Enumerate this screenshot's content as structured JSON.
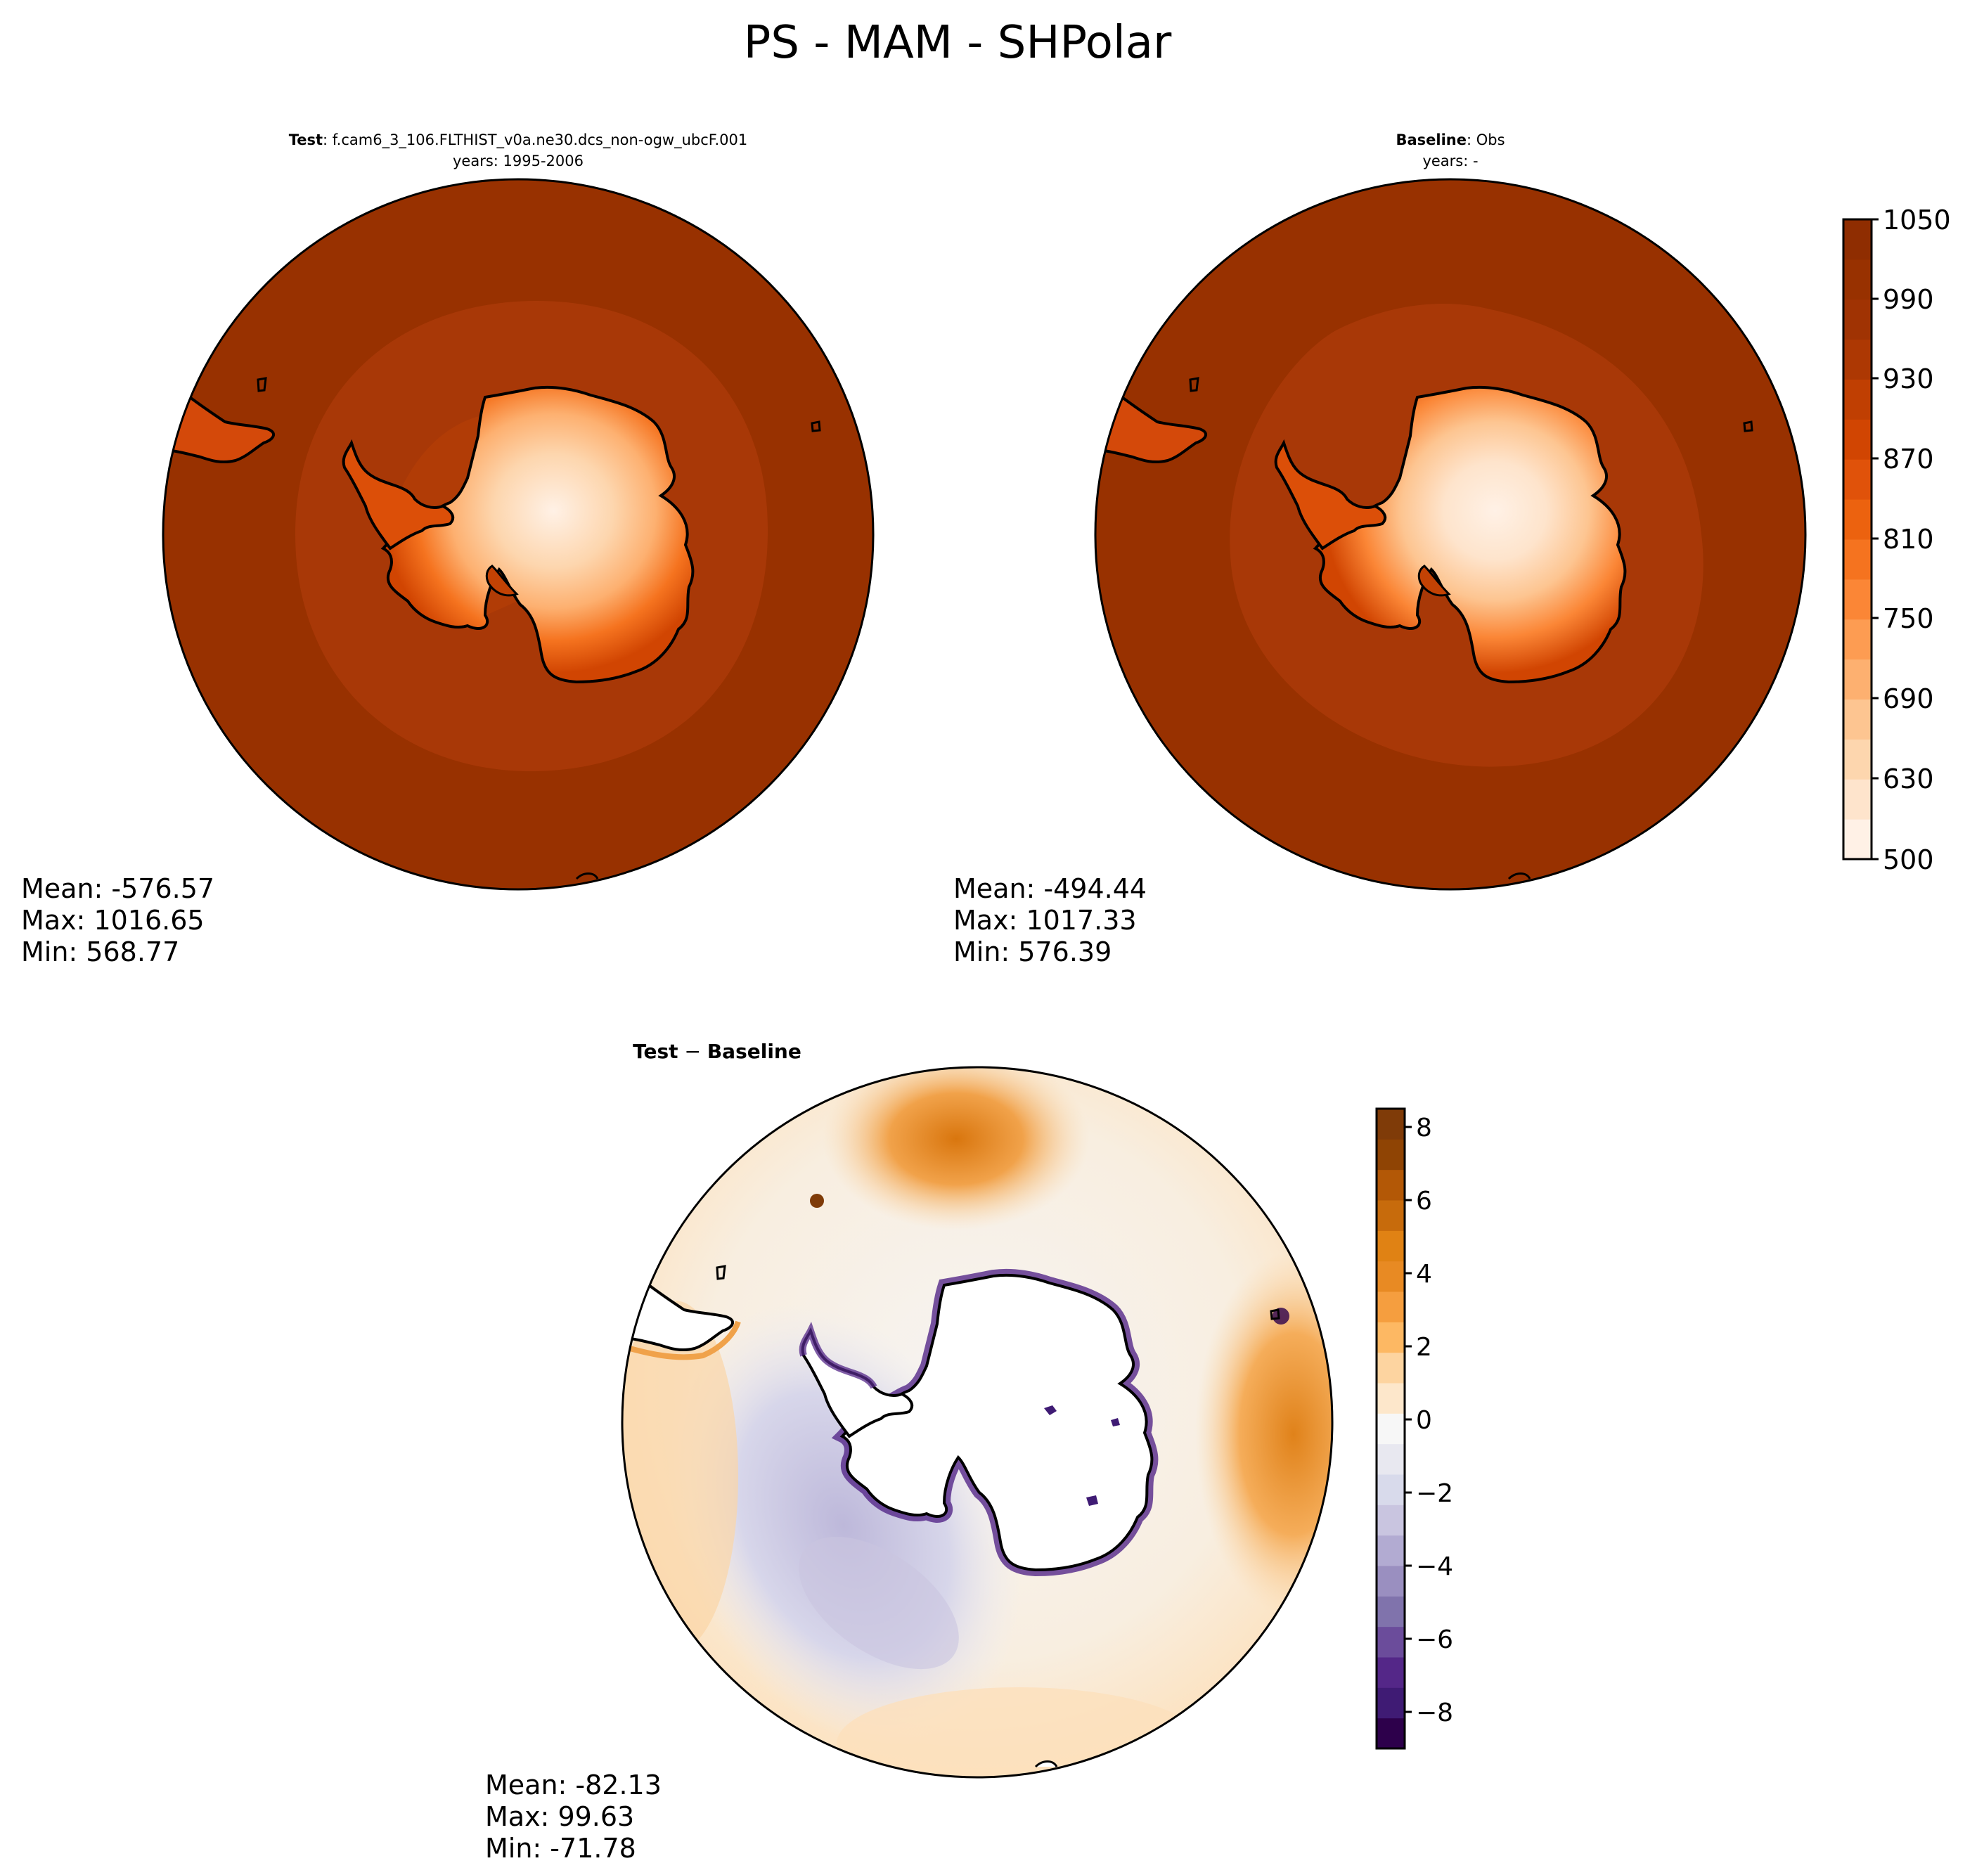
{
  "title": "PS - MAM - SHPolar",
  "colors": {
    "ocean_dark": "#983100",
    "ocean_mid": "#a83807",
    "coast_edge": "#e4570b",
    "interior_light": "#fdd0a4",
    "interior_center": "#fff1e6",
    "diff_pos": "#e57f1d",
    "diff_neg": "#b8b5d6",
    "diff_zero": "#f7f5f4"
  },
  "panels": {
    "test": {
      "label_bold": "Test",
      "label_rest": ": f.cam6_3_106.FLTHIST_v0a.ne30.dcs_non-ogw_ubcF.001",
      "years": "years: 1995-2006",
      "stats": [
        "Mean: -576.57",
        "Max: 1016.65",
        "Min: 568.77"
      ]
    },
    "baseline": {
      "label_bold": "Baseline",
      "label_rest": ": Obs",
      "years": "years: -",
      "stats": [
        "Mean: -494.44",
        "Max: 1017.33",
        "Min: 576.39"
      ]
    },
    "diff": {
      "label_bold": "Test",
      "label_op": " − ",
      "label_bold2": "Baseline",
      "stats": [
        "Mean: -82.13",
        "Max: 99.63",
        "Min: -71.78"
      ]
    }
  },
  "chart_data": [
    {
      "type": "heatmap",
      "title": "",
      "colorbar": {
        "min": 500,
        "max": 1050,
        "ticks": [
          "1050",
          "990",
          "930",
          "870",
          "810",
          "750",
          "690",
          "630",
          "500"
        ],
        "levels": [
          500,
          600,
          630,
          660,
          690,
          720,
          750,
          780,
          810,
          840,
          870,
          900,
          930,
          960,
          990,
          1020,
          1050
        ],
        "colors": [
          "#fff1e6",
          "#fee4cc",
          "#fdd6ae",
          "#fdc591",
          "#fdb070",
          "#fd9c52",
          "#fb8636",
          "#f5731f",
          "#ec620f",
          "#e0520a",
          "#d14502",
          "#c03f02",
          "#ad3803",
          "#a03303",
          "#983100",
          "#8f2d01"
        ]
      }
    },
    {
      "type": "heatmap",
      "title": "",
      "colorbar": {
        "min": -9,
        "max": 8.5,
        "ticks": [
          "8",
          "6",
          "4",
          "2",
          "0",
          "−2",
          "−4",
          "−6",
          "−8"
        ],
        "tick_values": [
          8,
          6,
          4,
          2,
          0,
          -2,
          -4,
          -6,
          -8
        ],
        "colors": [
          "#2d004b",
          "#3f1b74",
          "#542788",
          "#6b4c9b",
          "#8073ac",
          "#9a8fc0",
          "#b2abd2",
          "#c9c5e0",
          "#d8daeb",
          "#e8e8f0",
          "#f7f7f7",
          "#fde7cb",
          "#fdd4a0",
          "#fdb863",
          "#f59e3f",
          "#e88a23",
          "#e08214",
          "#c76b0c",
          "#b35806",
          "#8f4404",
          "#7f3b08"
        ]
      }
    }
  ]
}
